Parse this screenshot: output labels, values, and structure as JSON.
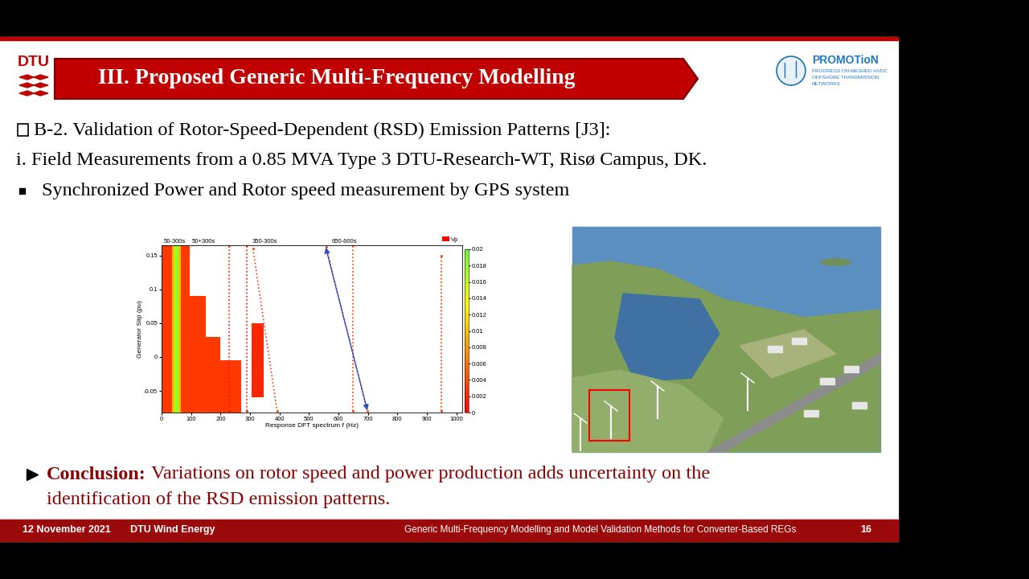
{
  "slide": {
    "title": "III. Proposed Generic Multi-Frequency Modelling",
    "logo": "DTU",
    "partner_logo": {
      "name": "PROMOTioN",
      "lines": [
        "PROGRESS ON MESHED HVDC",
        "OFFSHORE TRANSMISSION",
        "NETWORKS"
      ]
    },
    "body": [
      "B-2. Validation of Rotor-Speed-Dependent (RSD) Emission Patterns [J3]:",
      "i. Field Measurements from a 0.85 MVA Type 3 DTU-Research-WT, Risø Campus, DK.",
      "Synchronized Power and Rotor speed measurement by GPS system"
    ],
    "conclusion": {
      "label": "Conclusion:",
      "lines": [
        "Variations on rotor speed and power production adds uncertainty on the",
        "identification of the RSD emission patterns."
      ]
    },
    "footer": {
      "date": "12 November 2021",
      "unit": "DTU Wind Energy",
      "title": "Generic Multi-Frequency Modelling and Model Validation Methods for Converter-Based REGs",
      "page": 16
    }
  },
  "chart_data": {
    "type": "heatmap",
    "x_label": "Response DFT spectrum f (Hz)",
    "y_label": "Generator Slip (pu)",
    "xlim": [
      0,
      1020
    ],
    "ylim": [
      -0.082,
      0.165
    ],
    "xticks": [
      0,
      100,
      200,
      300,
      400,
      500,
      600,
      700,
      800,
      900,
      1000
    ],
    "yticks": [
      -0.05,
      0,
      0.05,
      0.1,
      0.15
    ],
    "legend": "upper right",
    "series": [
      {
        "name": "Vp",
        "color": "#ff0000"
      }
    ],
    "annotations": [
      {
        "text": "50-300s",
        "x": 44
      },
      {
        "text": "50+300s",
        "x": 142
      },
      {
        "text": "350-300s",
        "x": 350
      },
      {
        "text": "650-600s",
        "x": 620
      }
    ],
    "cells": [
      {
        "f": [
          0,
          95
        ],
        "slip": [
          0.09,
          0.165
        ],
        "value": 0.003
      },
      {
        "f": [
          0,
          150
        ],
        "slip": [
          0.03,
          0.09
        ],
        "value": 0.003
      },
      {
        "f": [
          0,
          200
        ],
        "slip": [
          -0.005,
          0.03
        ],
        "value": 0.003
      },
      {
        "f": [
          0,
          270
        ],
        "slip": [
          -0.082,
          -0.005
        ],
        "value": 0.003
      },
      {
        "f": [
          35,
          65
        ],
        "slip": [
          -0.082,
          0.165
        ],
        "value": 0.01
      },
      {
        "f": [
          44,
          56
        ],
        "slip": [
          -0.082,
          0.165
        ],
        "value": 0.018
      },
      {
        "f": [
          305,
          345
        ],
        "slip": [
          -0.06,
          0.05
        ],
        "value": 0.002
      }
    ],
    "traces": [
      {
        "f": [
          310,
          392
        ],
        "slip": [
          0.16,
          -0.08
        ],
        "value": 0.003
      },
      {
        "f": [
          558,
          698
        ],
        "slip": [
          0.163,
          -0.08
        ],
        "value": 0.003
      },
      {
        "f": [
          650,
          650
        ],
        "slip": [
          -0.08,
          0.165
        ],
        "value": 0.003
      },
      {
        "f": [
          950,
          950
        ],
        "slip": [
          -0.08,
          0.15
        ],
        "value": 0.002
      },
      {
        "f": [
          290,
          290
        ],
        "slip": [
          -0.08,
          0.165
        ],
        "value": 0.001
      },
      {
        "f": [
          230,
          230
        ],
        "slip": [
          -0.08,
          0.165
        ],
        "value": 0.001
      }
    ],
    "arrow": {
      "f": [
        555,
        700
      ],
      "slip": [
        0.165,
        -0.082
      ]
    },
    "colorbar": {
      "range": [
        0,
        0.02
      ],
      "ticks": [
        0,
        0.002,
        0.004,
        0.006,
        0.008,
        0.01,
        0.012,
        0.014,
        0.016,
        0.018,
        0.02
      ]
    }
  }
}
